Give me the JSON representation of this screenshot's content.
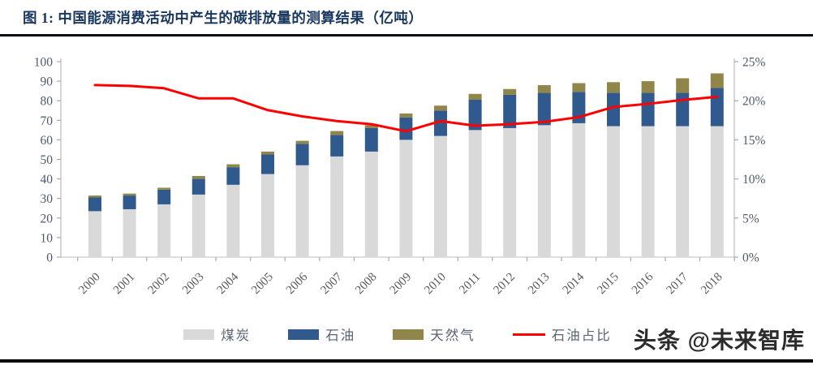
{
  "header": {
    "title": "图 1:  中国能源消费活动中产生的碳排放量的测算结果（亿吨）"
  },
  "watermark": {
    "text": "头条 @未来智库"
  },
  "chart_data": {
    "type": "bar",
    "subtype": "stacked-bars-with-line",
    "title": "中国能源消费活动中产生的碳排放量的测算结果（亿吨）",
    "categories": [
      "2000",
      "2001",
      "2002",
      "2003",
      "2004",
      "2005",
      "2006",
      "2007",
      "2008",
      "2009",
      "2010",
      "2011",
      "2012",
      "2013",
      "2014",
      "2015",
      "2016",
      "2017",
      "2018"
    ],
    "series": [
      {
        "name": "煤炭",
        "type": "bar",
        "color": "#d9d9d9",
        "values": [
          23.5,
          24.5,
          27,
          32,
          37,
          42.5,
          47,
          51.5,
          54,
          60,
          62,
          65,
          66,
          67.5,
          68.5,
          67,
          67,
          67,
          67
        ]
      },
      {
        "name": "石油",
        "type": "bar",
        "color": "#30598e",
        "values": [
          7,
          7,
          7.5,
          8,
          9,
          10,
          11,
          11,
          12,
          11.5,
          13,
          15.5,
          17,
          16.5,
          16,
          17,
          17,
          17,
          19.5
        ]
      },
      {
        "name": "天然气",
        "type": "bar",
        "color": "#91864a",
        "values": [
          1,
          1,
          1,
          1.5,
          1.5,
          1.5,
          1.5,
          2,
          1.5,
          2,
          2.5,
          3,
          3,
          4,
          4.5,
          5.5,
          6,
          7.5,
          7.5
        ]
      },
      {
        "name": "石油占比",
        "type": "line",
        "axis": "right",
        "unit": "%",
        "color": "#ff0000",
        "values": [
          22.0,
          21.9,
          21.6,
          20.3,
          20.3,
          18.8,
          18.0,
          17.4,
          17.0,
          16.1,
          17.4,
          16.8,
          17.0,
          17.3,
          17.9,
          19.2,
          19.6,
          20.1,
          20.5
        ]
      }
    ],
    "left_axis": {
      "min": 0,
      "max": 100,
      "step": 10,
      "labels": [
        "0",
        "10",
        "20",
        "30",
        "40",
        "50",
        "60",
        "70",
        "80",
        "90",
        "100"
      ]
    },
    "right_axis": {
      "min": 0,
      "max": 25,
      "step": 5,
      "format": "percent",
      "labels": [
        "0%",
        "5%",
        "10%",
        "15%",
        "20%",
        "25%"
      ]
    },
    "grid": false,
    "legend_position": "bottom"
  }
}
